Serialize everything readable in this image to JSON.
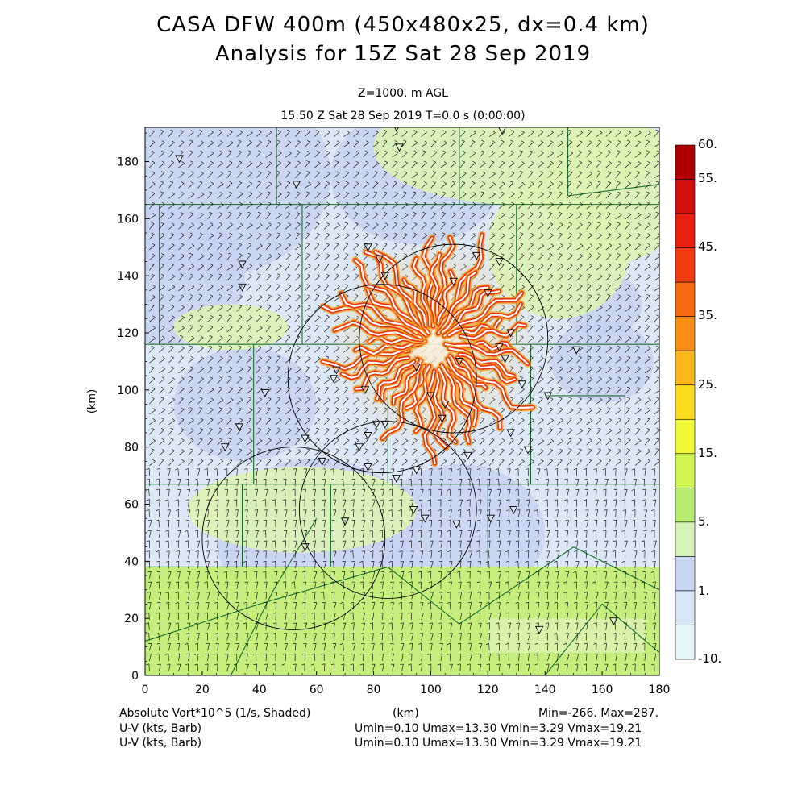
{
  "header": {
    "title_line1": "CASA DFW 400m (450x480x25, dx=0.4 km)",
    "title_line2": "Analysis for 15Z Sat 28 Sep 2019",
    "level": "Z=1000. m AGL",
    "time": "15:50 Z Sat 28 Sep 2019    T=0.0 s (0:00:00)"
  },
  "footer": {
    "field_label": "Absolute Vort*10^5 (1/s, Shaded)",
    "xunit": "(km)",
    "minmax": "Min=-266. Max=287.",
    "wind1_label": "U-V (kts, Barb)",
    "wind1_stats": "Umin=0.10 Umax=13.30 Vmin=3.29 Vmax=19.21",
    "wind2_label": "U-V (kts, Barb)",
    "wind2_stats": "Umin=0.10 Umax=13.30 Vmin=3.29 Vmax=19.21"
  },
  "chart_data": {
    "type": "heatmap",
    "xlabel": "(km)",
    "ylabel": "(km)",
    "xlim": [
      0,
      180
    ],
    "ylim": [
      0,
      192
    ],
    "xticks": [
      0,
      20,
      40,
      60,
      80,
      100,
      120,
      140,
      160,
      180
    ],
    "yticks": [
      0,
      20,
      40,
      60,
      80,
      100,
      120,
      140,
      160,
      180
    ],
    "colorbar": {
      "labels": [
        "60.",
        "55.",
        "45.",
        "35.",
        "25.",
        "15.",
        "5.",
        "1.",
        "-10."
      ],
      "colors": [
        "#b00000",
        "#d21010",
        "#e82010",
        "#f23c10",
        "#f56a10",
        "#f88c14",
        "#fbb818",
        "#fddc20",
        "#eef835",
        "#cff552",
        "#b6ec70",
        "#d6f2b6",
        "#c8d4f4",
        "#d8e6f6",
        "#e6f5fa"
      ]
    },
    "radar_rings": [
      {
        "cx": 108,
        "cy": 118,
        "r": 33
      },
      {
        "cx": 83,
        "cy": 104,
        "r": 33
      },
      {
        "cx": 52,
        "cy": 48,
        "r": 32
      },
      {
        "cx": 85,
        "cy": 58,
        "r": 31
      }
    ],
    "storm_center": [
      101,
      117
    ],
    "colors": {
      "low_green": "#c5ee7c",
      "mid_green": "#dcf3b4",
      "light_blue": "#dde8f6",
      "blue": "#c8d2f2",
      "county_lines": "#1a6e2a",
      "barb": "#000000"
    }
  }
}
